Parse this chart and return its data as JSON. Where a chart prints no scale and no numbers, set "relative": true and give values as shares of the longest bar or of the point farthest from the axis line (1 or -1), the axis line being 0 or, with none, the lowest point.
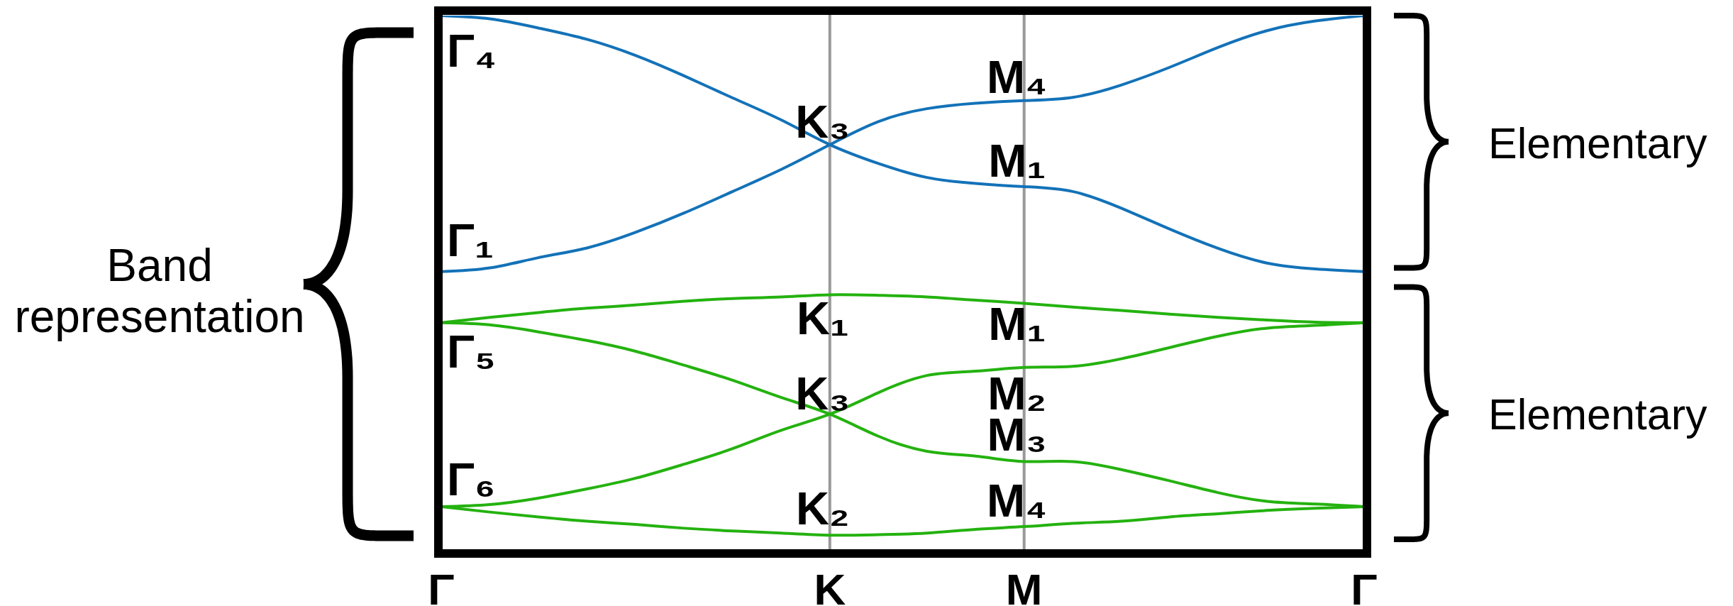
{
  "chart_data": {
    "type": "line",
    "relative": true,
    "categories": [
      "Γ",
      null,
      null,
      null,
      null,
      null,
      null,
      null,
      "K",
      null,
      null,
      null,
      "M",
      null,
      null,
      null,
      null,
      null,
      null,
      "Γ"
    ],
    "tick_labels": "x",
    "grid": "x",
    "series": [
      {
        "color": "#1372b8",
        "values": [
          1,
          0.994,
          0.977,
          0.956,
          0.926,
          0.888,
          0.847,
          0.806,
          0.76,
          0.725,
          0.699,
          0.688,
          0.682,
          0.673,
          0.642,
          0.603,
          0.567,
          0.54,
          0.529,
          0.524
        ]
      },
      {
        "color": "#1372b8",
        "values": [
          0.524,
          0.531,
          0.55,
          0.568,
          0.597,
          0.633,
          0.673,
          0.714,
          0.76,
          0.803,
          0.827,
          0.837,
          0.842,
          0.848,
          0.871,
          0.904,
          0.941,
          0.972,
          0.99,
          1
        ]
      },
      {
        "color": "#24b20f",
        "values": [
          0.429,
          0.439,
          0.448,
          0.456,
          0.462,
          0.469,
          0.474,
          0.477,
          0.481,
          0.48,
          0.477,
          0.471,
          0.465,
          0.458,
          0.452,
          0.445,
          0.439,
          0.434,
          0.43,
          0.429
        ]
      },
      {
        "color": "#24b20f",
        "values": [
          0.429,
          0.425,
          0.412,
          0.396,
          0.376,
          0.35,
          0.322,
          0.29,
          0.259,
          0.218,
          0.19,
          0.181,
          0.171,
          0.171,
          0.156,
          0.135,
          0.113,
          0.097,
          0.092,
          0.087
        ]
      },
      {
        "color": "#24b20f",
        "values": [
          0.087,
          0.091,
          0.103,
          0.12,
          0.14,
          0.166,
          0.195,
          0.229,
          0.259,
          0.299,
          0.331,
          0.339,
          0.346,
          0.348,
          0.362,
          0.383,
          0.404,
          0.419,
          0.424,
          0.429
        ]
      },
      {
        "color": "#24b20f",
        "values": [
          0.087,
          0.077,
          0.068,
          0.06,
          0.054,
          0.047,
          0.042,
          0.038,
          0.034,
          0.035,
          0.038,
          0.045,
          0.05,
          0.056,
          0.06,
          0.068,
          0.074,
          0.08,
          0.084,
          0.087
        ]
      }
    ],
    "annotations": [
      "Band representation",
      "Γ₄",
      "Γ₁",
      "Γ₅",
      "Γ₆",
      "K₃",
      "K₁",
      "K₃",
      "K₂",
      "M₄",
      "M₁",
      "M₁",
      "M₂",
      "M₃",
      "M₄",
      "Elementary",
      "Elementary"
    ]
  }
}
